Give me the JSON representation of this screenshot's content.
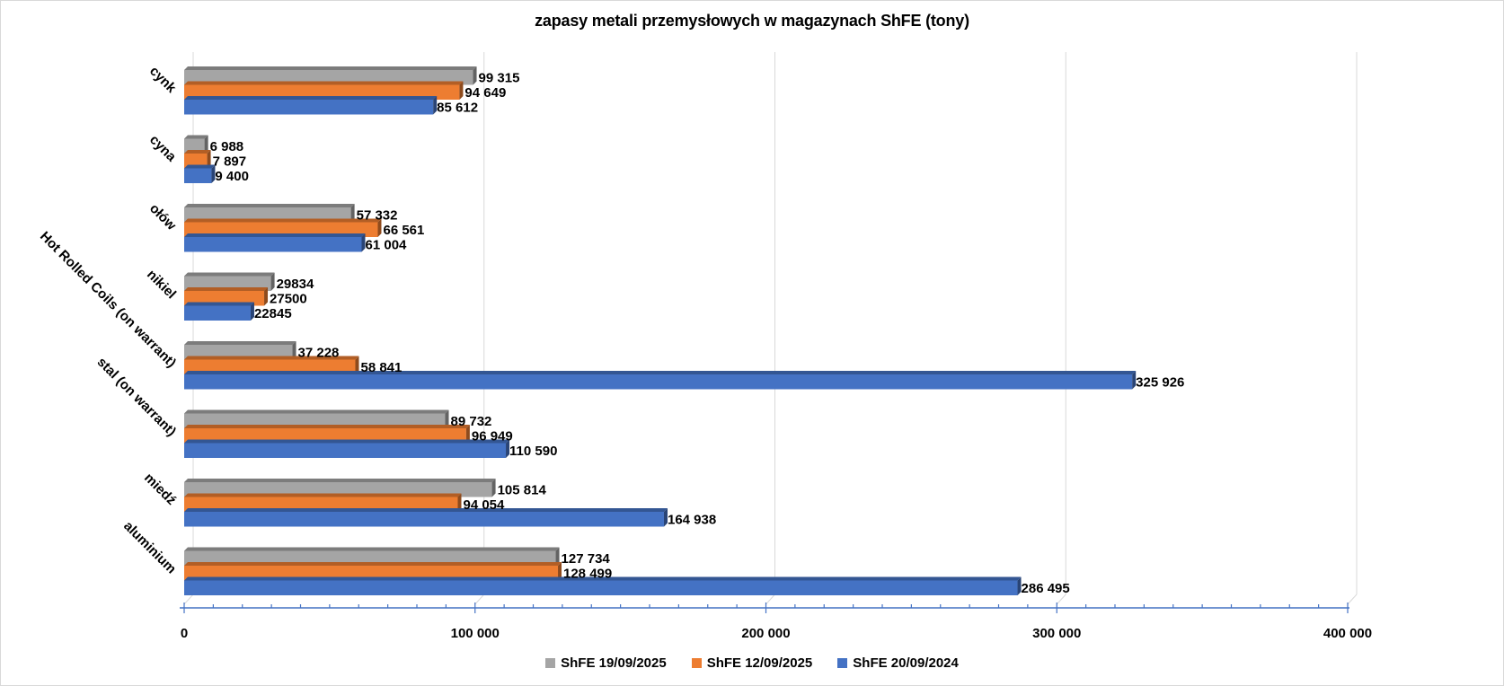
{
  "chart_data": {
    "type": "bar",
    "orientation": "horizontal",
    "style": "3d-clustered",
    "title": "zapasy metali przemysłowych w magazynach ShFE (tony)",
    "xlabel": "",
    "ylabel": "",
    "xlim": [
      0,
      400000
    ],
    "x_ticks": [
      0,
      100000,
      200000,
      300000,
      400000
    ],
    "x_tick_labels": [
      "0",
      "100 000",
      "200 000",
      "300 000",
      "400 000"
    ],
    "grid": true,
    "legend_position": "bottom",
    "categories": [
      "cynk",
      "cyna",
      "ołów",
      "nikiel",
      "Hot Rolled Coils (on warrant)",
      "stal (on warrant)",
      "miedź",
      "aluminium"
    ],
    "series": [
      {
        "name": "ShFE 19/09/2025",
        "color": "#a5a5a5",
        "values": [
          99315,
          6988,
          57332,
          29834,
          37228,
          89732,
          105814,
          127734
        ],
        "labels": [
          "99 315",
          "6 988",
          "57 332",
          "29834",
          "37 228",
          "89 732",
          "105 814",
          "127 734"
        ]
      },
      {
        "name": "ShFE 12/09/2025",
        "color": "#ed7d31",
        "values": [
          94649,
          7897,
          66561,
          27500,
          58841,
          96949,
          94054,
          128499
        ],
        "labels": [
          "94 649",
          "7 897",
          "66 561",
          "27500",
          "58 841",
          "96 949",
          "94 054",
          "128 499"
        ]
      },
      {
        "name": "ShFE 20/09/2024",
        "color": "#4472c4",
        "values": [
          85612,
          9400,
          61004,
          22845,
          325926,
          110590,
          164938,
          286495
        ],
        "labels": [
          "85 612",
          "9 400",
          "61 004",
          "22845",
          "325 926",
          "110 590",
          "164 938",
          "286 495"
        ]
      }
    ]
  }
}
